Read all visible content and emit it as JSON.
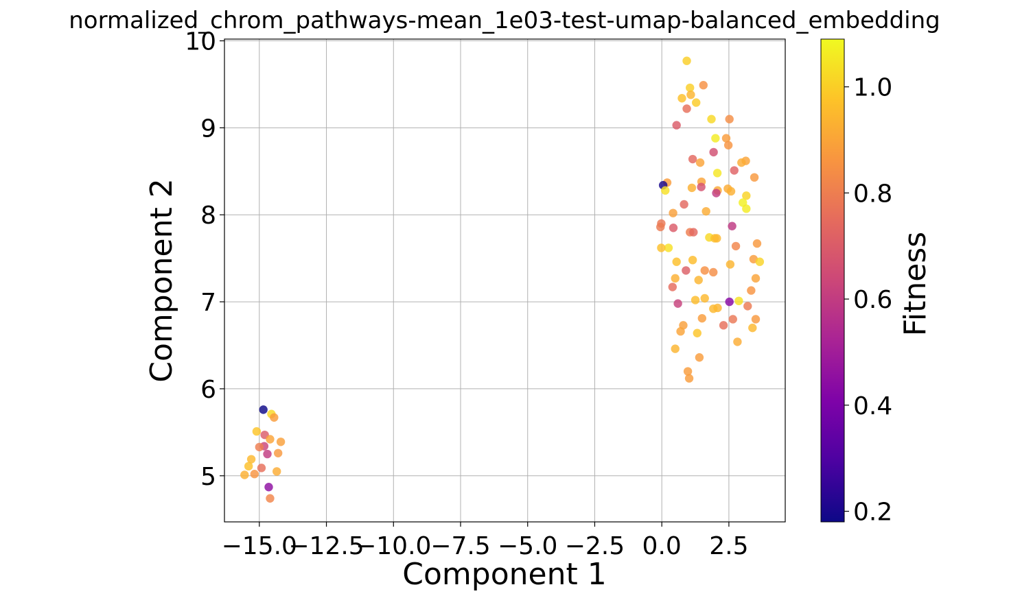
{
  "chart_data": {
    "type": "scatter",
    "title": "normalized_chrom_pathways-mean_1e03-test-umap-balanced_embedding",
    "xlabel": "Component 1",
    "ylabel": "Component 2",
    "xlim": [
      -16.3,
      4.6
    ],
    "ylim": [
      4.47,
      10.02
    ],
    "grid": true,
    "xticks": [
      -15.0,
      -12.5,
      -10.0,
      -7.5,
      -5.0,
      -2.5,
      0.0,
      2.5
    ],
    "xtick_labels": [
      "−15.0",
      "−12.5",
      "−10.0",
      "−7.5",
      "−5.0",
      "−2.5",
      "0.0",
      "2.5"
    ],
    "yticks": [
      5,
      6,
      7,
      8,
      9,
      10
    ],
    "ytick_labels": [
      "5",
      "6",
      "7",
      "8",
      "9",
      "10"
    ],
    "colorbar": {
      "label": "Fitness",
      "colormap": "plasma",
      "range": [
        0.18,
        1.09
      ],
      "ticks": [
        0.2,
        0.4,
        0.6,
        0.8,
        1.0
      ],
      "tick_labels": [
        "0.2",
        "0.4",
        "0.6",
        "0.8",
        "1.0"
      ]
    },
    "points": [
      {
        "x": 0.93,
        "y": 9.77,
        "fitness": 1.0
      },
      {
        "x": 1.05,
        "y": 9.46,
        "fitness": 1.0
      },
      {
        "x": 1.55,
        "y": 9.49,
        "fitness": 0.85
      },
      {
        "x": 0.75,
        "y": 9.34,
        "fitness": 0.97
      },
      {
        "x": 1.08,
        "y": 9.38,
        "fitness": 0.94
      },
      {
        "x": 1.28,
        "y": 9.29,
        "fitness": 0.99
      },
      {
        "x": 0.93,
        "y": 9.22,
        "fitness": 0.76
      },
      {
        "x": 1.85,
        "y": 9.1,
        "fitness": 1.02
      },
      {
        "x": 2.52,
        "y": 9.1,
        "fitness": 0.84
      },
      {
        "x": 0.55,
        "y": 9.03,
        "fitness": 0.7
      },
      {
        "x": 2.0,
        "y": 8.88,
        "fitness": 1.06
      },
      {
        "x": 2.4,
        "y": 8.88,
        "fitness": 0.88
      },
      {
        "x": 2.48,
        "y": 8.8,
        "fitness": 0.86
      },
      {
        "x": 1.93,
        "y": 8.72,
        "fitness": 0.66
      },
      {
        "x": 1.15,
        "y": 8.64,
        "fitness": 0.74
      },
      {
        "x": 1.43,
        "y": 8.6,
        "fitness": 0.9
      },
      {
        "x": 3.13,
        "y": 8.62,
        "fitness": 0.9
      },
      {
        "x": 2.97,
        "y": 8.6,
        "fitness": 0.92
      },
      {
        "x": 2.7,
        "y": 8.51,
        "fitness": 0.72
      },
      {
        "x": 2.07,
        "y": 8.48,
        "fitness": 1.05
      },
      {
        "x": 3.45,
        "y": 8.43,
        "fitness": 0.87
      },
      {
        "x": 1.48,
        "y": 8.38,
        "fitness": 0.9
      },
      {
        "x": 0.2,
        "y": 8.37,
        "fitness": 0.88
      },
      {
        "x": 0.05,
        "y": 8.34,
        "fitness": 0.2
      },
      {
        "x": 1.12,
        "y": 8.31,
        "fitness": 0.93
      },
      {
        "x": 1.47,
        "y": 8.32,
        "fitness": 0.67
      },
      {
        "x": 2.46,
        "y": 8.3,
        "fitness": 0.92
      },
      {
        "x": 2.08,
        "y": 8.28,
        "fitness": 0.91
      },
      {
        "x": 2.58,
        "y": 8.27,
        "fitness": 0.93
      },
      {
        "x": 0.13,
        "y": 8.28,
        "fitness": 1.04
      },
      {
        "x": 2.03,
        "y": 8.25,
        "fitness": 0.6
      },
      {
        "x": 3.15,
        "y": 8.22,
        "fitness": 1.01
      },
      {
        "x": 3.02,
        "y": 8.14,
        "fitness": 1.07
      },
      {
        "x": 0.83,
        "y": 8.12,
        "fitness": 0.74
      },
      {
        "x": 3.15,
        "y": 8.07,
        "fitness": 1.06
      },
      {
        "x": 1.65,
        "y": 8.04,
        "fitness": 0.92
      },
      {
        "x": 0.42,
        "y": 8.02,
        "fitness": 0.89
      },
      {
        "x": -0.02,
        "y": 7.9,
        "fitness": 0.78
      },
      {
        "x": -0.05,
        "y": 7.86,
        "fitness": 0.79
      },
      {
        "x": 2.62,
        "y": 7.87,
        "fitness": 0.59
      },
      {
        "x": 0.43,
        "y": 7.85,
        "fitness": 0.7
      },
      {
        "x": 1.05,
        "y": 7.8,
        "fitness": 0.8
      },
      {
        "x": 1.18,
        "y": 7.8,
        "fitness": 0.74
      },
      {
        "x": 1.77,
        "y": 7.74,
        "fitness": 1.02
      },
      {
        "x": 1.97,
        "y": 7.73,
        "fitness": 0.97
      },
      {
        "x": 2.05,
        "y": 7.73,
        "fitness": 0.95
      },
      {
        "x": 3.55,
        "y": 7.67,
        "fitness": 0.87
      },
      {
        "x": 2.76,
        "y": 7.64,
        "fitness": 0.82
      },
      {
        "x": 0.25,
        "y": 7.62,
        "fitness": 1.04
      },
      {
        "x": -0.02,
        "y": 7.62,
        "fitness": 0.97
      },
      {
        "x": 1.15,
        "y": 7.48,
        "fitness": 0.96
      },
      {
        "x": 3.42,
        "y": 7.49,
        "fitness": 0.88
      },
      {
        "x": 3.65,
        "y": 7.46,
        "fitness": 1.01
      },
      {
        "x": 0.55,
        "y": 7.46,
        "fitness": 0.97
      },
      {
        "x": 2.55,
        "y": 7.43,
        "fitness": 0.94
      },
      {
        "x": 0.9,
        "y": 7.36,
        "fitness": 0.71
      },
      {
        "x": 1.6,
        "y": 7.36,
        "fitness": 0.85
      },
      {
        "x": 1.92,
        "y": 7.34,
        "fitness": 0.84
      },
      {
        "x": 0.5,
        "y": 7.27,
        "fitness": 0.93
      },
      {
        "x": 3.5,
        "y": 7.27,
        "fitness": 0.9
      },
      {
        "x": 1.37,
        "y": 7.25,
        "fitness": 0.94
      },
      {
        "x": 0.4,
        "y": 7.17,
        "fitness": 0.75
      },
      {
        "x": 3.33,
        "y": 7.13,
        "fitness": 0.86
      },
      {
        "x": 1.6,
        "y": 7.04,
        "fitness": 0.95
      },
      {
        "x": 1.25,
        "y": 7.02,
        "fitness": 0.96
      },
      {
        "x": 2.87,
        "y": 7.01,
        "fitness": 1.04
      },
      {
        "x": 0.6,
        "y": 6.98,
        "fitness": 0.62
      },
      {
        "x": 2.52,
        "y": 7.0,
        "fitness": 0.43
      },
      {
        "x": 3.2,
        "y": 6.95,
        "fitness": 0.79
      },
      {
        "x": 2.08,
        "y": 6.93,
        "fitness": 0.94
      },
      {
        "x": 1.92,
        "y": 6.92,
        "fitness": 0.95
      },
      {
        "x": 2.3,
        "y": 6.73,
        "fitness": 0.76
      },
      {
        "x": 1.5,
        "y": 6.81,
        "fitness": 0.88
      },
      {
        "x": 2.65,
        "y": 6.8,
        "fitness": 0.78
      },
      {
        "x": 3.5,
        "y": 6.8,
        "fitness": 0.87
      },
      {
        "x": 0.8,
        "y": 6.73,
        "fitness": 0.89
      },
      {
        "x": 3.38,
        "y": 6.7,
        "fitness": 0.95
      },
      {
        "x": 0.7,
        "y": 6.66,
        "fitness": 0.9
      },
      {
        "x": 1.32,
        "y": 6.64,
        "fitness": 0.98
      },
      {
        "x": 2.82,
        "y": 6.54,
        "fitness": 0.92
      },
      {
        "x": 0.5,
        "y": 6.46,
        "fitness": 0.94
      },
      {
        "x": 1.4,
        "y": 6.36,
        "fitness": 0.88
      },
      {
        "x": 0.97,
        "y": 6.2,
        "fitness": 0.88
      },
      {
        "x": 1.02,
        "y": 6.12,
        "fitness": 0.88
      },
      {
        "x": -14.85,
        "y": 5.76,
        "fitness": 0.18
      },
      {
        "x": -14.55,
        "y": 5.71,
        "fitness": 1.02
      },
      {
        "x": -14.45,
        "y": 5.67,
        "fitness": 0.88
      },
      {
        "x": -15.1,
        "y": 5.51,
        "fitness": 0.98
      },
      {
        "x": -14.8,
        "y": 5.47,
        "fitness": 0.7
      },
      {
        "x": -14.6,
        "y": 5.42,
        "fitness": 0.9
      },
      {
        "x": -14.2,
        "y": 5.39,
        "fitness": 0.89
      },
      {
        "x": -14.82,
        "y": 5.34,
        "fitness": 0.63
      },
      {
        "x": -15.0,
        "y": 5.33,
        "fitness": 0.8
      },
      {
        "x": -14.7,
        "y": 5.25,
        "fitness": 0.6
      },
      {
        "x": -14.3,
        "y": 5.26,
        "fitness": 0.87
      },
      {
        "x": -15.3,
        "y": 5.19,
        "fitness": 0.95
      },
      {
        "x": -15.4,
        "y": 5.11,
        "fitness": 0.97
      },
      {
        "x": -14.92,
        "y": 5.09,
        "fitness": 0.76
      },
      {
        "x": -14.35,
        "y": 5.05,
        "fitness": 0.92
      },
      {
        "x": -15.55,
        "y": 5.01,
        "fitness": 0.93
      },
      {
        "x": -15.18,
        "y": 5.02,
        "fitness": 0.86
      },
      {
        "x": -14.65,
        "y": 4.87,
        "fitness": 0.45
      },
      {
        "x": -14.6,
        "y": 4.74,
        "fitness": 0.82
      }
    ]
  }
}
